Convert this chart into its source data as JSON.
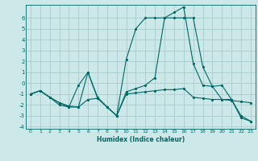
{
  "xlabel": "Humidex (Indice chaleur)",
  "background_color": "#cce8e8",
  "grid_color": "#aacccc",
  "line_color": "#006666",
  "xlim": [
    -0.5,
    23.5
  ],
  "ylim": [
    -4.2,
    7.2
  ],
  "xticks": [
    0,
    1,
    2,
    3,
    4,
    5,
    6,
    7,
    8,
    9,
    10,
    11,
    12,
    13,
    14,
    15,
    16,
    17,
    18,
    19,
    20,
    21,
    22,
    23
  ],
  "yticks": [
    -4,
    -3,
    -2,
    -1,
    0,
    1,
    2,
    3,
    4,
    5,
    6
  ],
  "series": [
    {
      "x": [
        0,
        1,
        2,
        3,
        4,
        5,
        6,
        7,
        8,
        9,
        10,
        11,
        12,
        13,
        14,
        15,
        16,
        17,
        18,
        19,
        20,
        21,
        22,
        23
      ],
      "y": [
        -1.0,
        -0.7,
        -1.3,
        -1.8,
        -2.2,
        -2.2,
        -1.5,
        -1.4,
        -2.2,
        -3.0,
        -1.0,
        -0.9,
        -0.8,
        -0.7,
        -0.6,
        -0.6,
        -0.5,
        -1.3,
        -1.4,
        -1.5,
        -1.5,
        -1.6,
        -1.7,
        -1.8
      ]
    },
    {
      "x": [
        0,
        1,
        2,
        3,
        4,
        5,
        6,
        7,
        8,
        9,
        10,
        11,
        12,
        13,
        14,
        15,
        16,
        17,
        18,
        19,
        20,
        21,
        22,
        23
      ],
      "y": [
        -1.0,
        -0.7,
        -1.3,
        -2.0,
        -2.2,
        -0.2,
        1.0,
        -1.4,
        -2.2,
        -3.0,
        -0.8,
        -0.5,
        -0.2,
        0.5,
        6.0,
        6.0,
        6.0,
        6.0,
        1.5,
        -0.3,
        -0.2,
        -1.5,
        -3.2,
        -3.5
      ]
    },
    {
      "x": [
        0,
        1,
        2,
        3,
        4,
        5,
        6,
        7,
        8,
        9,
        10,
        11,
        12,
        13,
        14,
        15,
        16,
        17,
        18,
        19,
        20,
        21,
        22,
        23
      ],
      "y": [
        -1.0,
        -0.7,
        -1.3,
        -1.8,
        -2.1,
        -2.2,
        1.0,
        -1.3,
        -2.2,
        -3.0,
        2.2,
        5.0,
        6.0,
        6.0,
        6.0,
        6.5,
        7.0,
        1.8,
        -0.2,
        -0.3,
        -1.5,
        -1.5,
        -3.0,
        -3.5
      ]
    }
  ]
}
